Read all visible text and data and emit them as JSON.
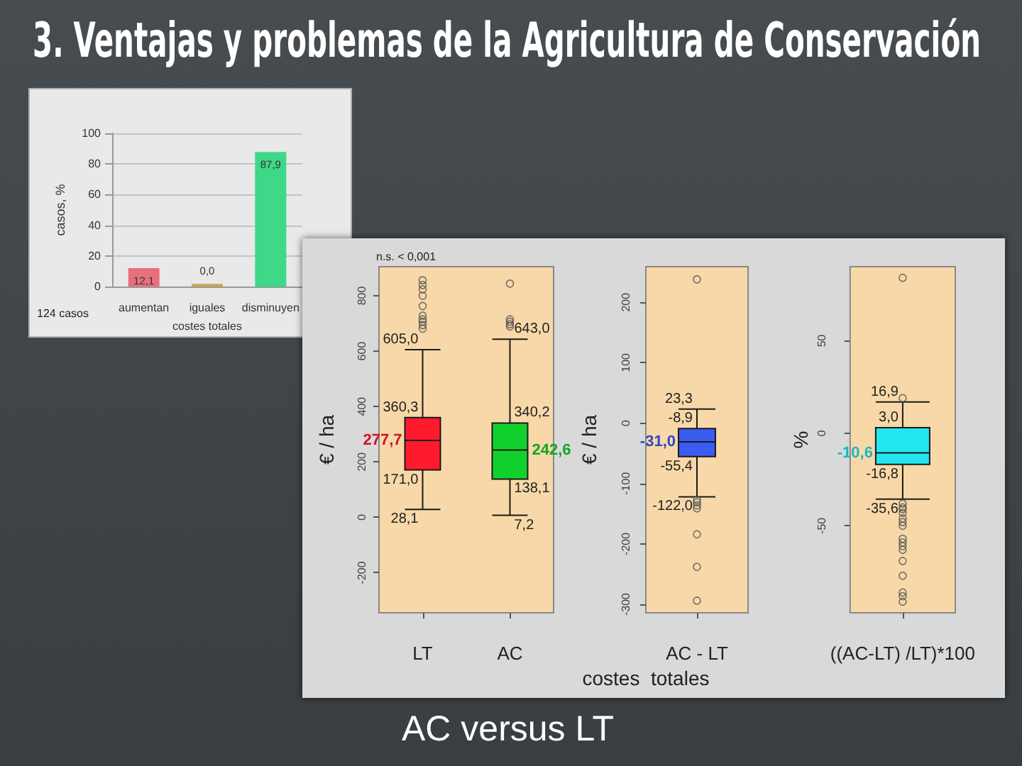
{
  "chart_data": [
    {
      "type": "bar",
      "title": "3. Ventajas y problemas de la Agricultura de Conservación",
      "categories": [
        "aumentan",
        "iguales",
        "disminuyen"
      ],
      "values": [
        12.1,
        0.0,
        87.9
      ],
      "colors": [
        "#e8707e",
        "#c8a850",
        "#3fd888"
      ],
      "value_labels": [
        "12,1",
        "0,0",
        "87,9"
      ],
      "ylim": [
        0,
        100
      ],
      "yticks": [
        0,
        20,
        40,
        60,
        80,
        100
      ],
      "grid": "y",
      "ylabel": "casos, %",
      "xlabel": "costes totales",
      "annotations": [
        "124 casos"
      ]
    },
    {
      "type": "box",
      "categories": [
        "LT",
        "AC"
      ],
      "boxes": [
        {
          "low": 28.1,
          "q1": 171.0,
          "median": 277.7,
          "q3": 360.3,
          "high": 605.0,
          "outliers": [
            856,
            839,
            823,
            800,
            763,
            728,
            715,
            706,
            694,
            681
          ]
        },
        {
          "low": 7.2,
          "q1": 138.1,
          "median": 242.6,
          "q3": 340.2,
          "high": 643.0,
          "outliers": [
            844,
            715,
            706,
            697,
            689
          ]
        }
      ],
      "colors": [
        "#ff1a2e",
        "#12d12e"
      ],
      "ylim": [
        -345,
        905
      ],
      "yticks": [
        -200,
        0,
        200,
        400,
        600,
        800
      ],
      "ylabel": "€ / ha",
      "annotations": [
        "n.s. < 0,001",
        {
          "text": "605,0",
          "x": "LT",
          "y": 605.0
        },
        {
          "text": "360,3",
          "x": "LT",
          "y": 360.3
        },
        {
          "text": "277,7",
          "x": "LT",
          "y": 277.7
        },
        {
          "text": "171,0",
          "x": "LT",
          "y": 171.0
        },
        {
          "text": "28,1",
          "x": "LT",
          "y": 28.1
        },
        {
          "text": "643,0",
          "x": "AC",
          "y": 643.0
        },
        {
          "text": "340,2",
          "x": "AC",
          "y": 340.2
        },
        {
          "text": "242,6",
          "x": "AC",
          "y": 242.6
        },
        {
          "text": "138,1",
          "x": "AC",
          "y": 138.1
        },
        {
          "text": "7,2",
          "x": "AC",
          "y": 7.2
        }
      ]
    },
    {
      "type": "box",
      "categories": [
        "AC - LT"
      ],
      "boxes": [
        {
          "low": -122.0,
          "q1": -55.4,
          "median": -31.0,
          "q3": -8.9,
          "high": 23.3,
          "outliers": [
            238,
            -127,
            -131,
            -136,
            -141,
            -184,
            -238,
            -294
          ]
        }
      ],
      "colors": [
        "#3a5cf0"
      ],
      "ylim": [
        -314,
        259
      ],
      "yticks": [
        -300,
        -200,
        -100,
        0,
        100,
        200
      ],
      "ylabel": "€ / ha",
      "xlabel": "costes  totales",
      "annotations": [
        {
          "text": "23,3",
          "x": "AC - LT",
          "y": 23.3
        },
        {
          "text": "-8,9",
          "x": "AC - LT",
          "y": -8.9
        },
        {
          "text": "-31,0",
          "x": "AC - LT",
          "y": -31.0
        },
        {
          "text": "-55,4",
          "x": "AC - LT",
          "y": -55.4
        },
        {
          "text": "-122,0",
          "x": "AC - LT",
          "y": -122.0
        },
        "AC versus LT"
      ]
    },
    {
      "type": "box",
      "categories": [
        "((AC-LT) /LT)*100"
      ],
      "boxes": [
        {
          "low": -35.6,
          "q1": -16.8,
          "median": -10.6,
          "q3": 3.0,
          "high": 16.9,
          "outliers": [
            84,
            19,
            -38,
            -40,
            -41,
            -43,
            -46,
            -48,
            -50,
            -57,
            -59,
            -61,
            -63,
            -69,
            -77,
            -86,
            -88,
            -91
          ]
        }
      ],
      "colors": [
        "#22e6f0"
      ],
      "ylim": [
        -97,
        90
      ],
      "yticks": [
        -50,
        0,
        50
      ],
      "ylabel": "%",
      "annotations": [
        {
          "text": "16,9",
          "x": "((AC-LT) /LT)*100",
          "y": 16.9
        },
        {
          "text": "3,0",
          "x": "((AC-LT) /LT)*100",
          "y": 3.0
        },
        {
          "text": "-10,6",
          "x": "((AC-LT) /LT)*100",
          "y": -10.6
        },
        {
          "text": "-16,8",
          "x": "((AC-LT) /LT)*100",
          "y": -16.8
        },
        {
          "text": "-35,6",
          "x": "((AC-LT) /LT)*100",
          "y": -35.6
        }
      ]
    }
  ]
}
